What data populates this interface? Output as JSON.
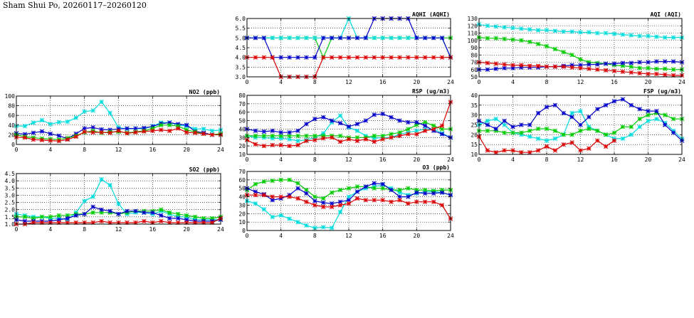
{
  "page": {
    "title": "Sham Shui Po, 20260117–20260120"
  },
  "colors": {
    "blue": "#0000cc",
    "green": "#00cc00",
    "red": "#dd0000",
    "cyan": "#00dddd",
    "grid": "#000000"
  },
  "chart_data": [
    {
      "id": "no2",
      "type": "line",
      "title": "NO2 (ppb)",
      "xlim": [
        0,
        24
      ],
      "ylim": [
        0,
        100
      ],
      "xticks": [
        "0",
        "4",
        "8",
        "12",
        "16",
        "20",
        "24"
      ],
      "yticks": [
        "0",
        "20",
        "40",
        "60",
        "80",
        "100"
      ],
      "x": [
        0,
        1,
        2,
        3,
        4,
        5,
        6,
        7,
        8,
        9,
        10,
        11,
        12,
        13,
        14,
        15,
        16,
        17,
        18,
        19,
        20,
        21,
        22,
        23,
        24
      ],
      "series": [
        {
          "name": "cyan",
          "values": [
            38,
            38,
            45,
            50,
            42,
            46,
            47,
            55,
            68,
            70,
            88,
            65,
            35,
            32,
            33,
            32,
            38,
            45,
            45,
            40,
            38,
            32,
            32,
            28,
            30
          ]
        },
        {
          "name": "blue",
          "values": [
            23,
            21,
            24,
            27,
            22,
            18,
            12,
            22,
            33,
            35,
            31,
            30,
            32,
            33,
            33,
            34,
            37,
            43,
            45,
            42,
            40,
            27,
            24,
            20,
            20
          ]
        },
        {
          "name": "green",
          "values": [
            20,
            16,
            14,
            12,
            11,
            10,
            13,
            18,
            25,
            28,
            24,
            26,
            26,
            24,
            26,
            28,
            33,
            40,
            40,
            38,
            30,
            26,
            22,
            20,
            22
          ]
        },
        {
          "name": "red",
          "values": [
            15,
            14,
            10,
            9,
            8,
            7,
            10,
            16,
            26,
            25,
            25,
            24,
            28,
            23,
            25,
            27,
            28,
            30,
            28,
            33,
            25,
            24,
            22,
            20,
            20
          ]
        }
      ]
    },
    {
      "id": "so2",
      "type": "line",
      "title": "SO2 (ppb)",
      "xlim": [
        0,
        24
      ],
      "ylim": [
        1.0,
        4.5
      ],
      "xticks": [
        "0",
        "4",
        "8",
        "12",
        "16",
        "20",
        "24"
      ],
      "yticks": [
        "1.0",
        "1.5",
        "2.0",
        "2.5",
        "3.0",
        "3.5",
        "4.0",
        "4.5"
      ],
      "x": [
        0,
        1,
        2,
        3,
        4,
        5,
        6,
        7,
        8,
        9,
        10,
        11,
        12,
        13,
        14,
        15,
        16,
        17,
        18,
        19,
        20,
        21,
        22,
        23,
        24
      ],
      "series": [
        {
          "name": "cyan",
          "values": [
            1.7,
            1.6,
            1.5,
            1.5,
            1.4,
            1.4,
            1.3,
            1.8,
            2.6,
            2.9,
            4.1,
            3.7,
            2.4,
            1.7,
            1.8,
            1.8,
            1.7,
            1.9,
            1.7,
            1.5,
            1.5,
            1.3,
            1.3,
            1.3,
            1.3
          ]
        },
        {
          "name": "green",
          "values": [
            1.5,
            1.5,
            1.4,
            1.5,
            1.5,
            1.6,
            1.6,
            1.7,
            1.7,
            1.8,
            1.8,
            1.8,
            1.7,
            1.8,
            1.9,
            1.9,
            1.9,
            2.0,
            1.8,
            1.7,
            1.6,
            1.5,
            1.4,
            1.4,
            1.5
          ]
        },
        {
          "name": "blue",
          "values": [
            1.3,
            1.2,
            1.2,
            1.2,
            1.2,
            1.3,
            1.4,
            1.6,
            1.7,
            2.2,
            2.0,
            1.9,
            1.7,
            1.9,
            1.9,
            1.8,
            1.8,
            1.6,
            1.4,
            1.4,
            1.3,
            1.2,
            1.2,
            1.2,
            1.3
          ]
        },
        {
          "name": "red",
          "values": [
            1.0,
            1.0,
            1.1,
            1.1,
            1.1,
            1.1,
            1.1,
            1.1,
            1.1,
            1.1,
            1.2,
            1.1,
            1.1,
            1.1,
            1.1,
            1.2,
            1.1,
            1.2,
            1.1,
            1.1,
            1.1,
            1.1,
            1.1,
            1.1,
            1.4
          ]
        }
      ]
    },
    {
      "id": "aqhi",
      "type": "line",
      "title": "AQHI (AQHI)",
      "xlim": [
        0,
        24
      ],
      "ylim": [
        3.0,
        6.0
      ],
      "xticks": [
        "0",
        "4",
        "8",
        "12",
        "16",
        "20",
        "24"
      ],
      "yticks": [
        "3.0",
        "3.5",
        "4.0",
        "4.5",
        "5.0",
        "5.5",
        "6.0"
      ],
      "x": [
        0,
        1,
        2,
        3,
        4,
        5,
        6,
        7,
        8,
        9,
        10,
        11,
        12,
        13,
        14,
        15,
        16,
        17,
        18,
        19,
        20,
        21,
        22,
        23,
        24
      ],
      "series": [
        {
          "name": "green",
          "values": [
            5,
            5,
            5,
            5,
            5,
            5,
            5,
            5,
            5,
            4,
            5,
            5,
            5,
            5,
            5,
            5,
            5,
            5,
            5,
            5,
            5,
            5,
            5,
            5,
            5
          ]
        },
        {
          "name": "cyan",
          "values": [
            5,
            5,
            5,
            5,
            5,
            5,
            5,
            5,
            5,
            5,
            5,
            5,
            6,
            5,
            5,
            5,
            5,
            5,
            5,
            5,
            5,
            5,
            5,
            5,
            4
          ]
        },
        {
          "name": "blue",
          "values": [
            5,
            5,
            5,
            4,
            4,
            4,
            4,
            4,
            4,
            5,
            5,
            5,
            5,
            5,
            5,
            6,
            6,
            6,
            6,
            6,
            5,
            5,
            5,
            5,
            4
          ]
        },
        {
          "name": "red",
          "values": [
            4,
            4,
            4,
            4,
            3,
            3,
            3,
            3,
            3,
            4,
            4,
            4,
            4,
            4,
            4,
            4,
            4,
            4,
            4,
            4,
            4,
            4,
            4,
            4,
            4
          ]
        }
      ]
    },
    {
      "id": "rsp",
      "type": "line",
      "title": "RSP (ug/m3)",
      "xlim": [
        0,
        24
      ],
      "ylim": [
        10,
        80
      ],
      "xticks": [
        "0",
        "4",
        "8",
        "12",
        "16",
        "20",
        "24"
      ],
      "yticks": [
        "10",
        "20",
        "30",
        "40",
        "50",
        "60",
        "70",
        "80"
      ],
      "x": [
        0,
        1,
        2,
        3,
        4,
        5,
        6,
        7,
        8,
        9,
        10,
        11,
        12,
        13,
        14,
        15,
        16,
        17,
        18,
        19,
        20,
        21,
        22,
        23,
        24
      ],
      "series": [
        {
          "name": "cyan",
          "values": [
            32,
            30,
            30,
            29,
            29,
            28,
            26,
            27,
            30,
            35,
            48,
            56,
            42,
            38,
            32,
            29,
            30,
            30,
            34,
            36,
            38,
            40,
            40,
            35,
            30
          ]
        },
        {
          "name": "green",
          "values": [
            32,
            32,
            32,
            32,
            32,
            32,
            32,
            32,
            32,
            32,
            32,
            32,
            30,
            30,
            30,
            32,
            32,
            34,
            36,
            40,
            45,
            48,
            44,
            40,
            40
          ]
        },
        {
          "name": "blue",
          "values": [
            40,
            38,
            37,
            38,
            36,
            36,
            38,
            46,
            52,
            54,
            50,
            47,
            43,
            46,
            50,
            57,
            58,
            54,
            50,
            48,
            48,
            44,
            38,
            34,
            30
          ]
        },
        {
          "name": "red",
          "values": [
            27,
            22,
            20,
            21,
            21,
            20,
            21,
            26,
            27,
            29,
            30,
            25,
            28,
            26,
            28,
            25,
            28,
            30,
            32,
            34,
            34,
            38,
            40,
            44,
            72
          ]
        }
      ]
    },
    {
      "id": "o3",
      "type": "line",
      "title": "O3 (ppb)",
      "xlim": [
        0,
        24
      ],
      "ylim": [
        0,
        70
      ],
      "xticks": [
        "0",
        "4",
        "8",
        "12",
        "16",
        "20",
        "24"
      ],
      "yticks": [
        "0",
        "10",
        "20",
        "30",
        "40",
        "50",
        "60",
        "70"
      ],
      "x": [
        0,
        1,
        2,
        3,
        4,
        5,
        6,
        7,
        8,
        9,
        10,
        11,
        12,
        13,
        14,
        15,
        16,
        17,
        18,
        19,
        20,
        21,
        22,
        23,
        24
      ],
      "series": [
        {
          "name": "cyan",
          "values": [
            35,
            32,
            25,
            16,
            18,
            14,
            10,
            6,
            3,
            4,
            3,
            22,
            40,
            46,
            50,
            52,
            54,
            50,
            45,
            42,
            44,
            46,
            46,
            45,
            42
          ]
        },
        {
          "name": "green",
          "values": [
            48,
            55,
            58,
            59,
            60,
            60,
            56,
            48,
            40,
            38,
            45,
            48,
            50,
            52,
            52,
            50,
            50,
            48,
            48,
            50,
            48,
            48,
            47,
            48,
            48
          ]
        },
        {
          "name": "blue",
          "values": [
            50,
            46,
            43,
            36,
            38,
            42,
            50,
            44,
            35,
            33,
            32,
            34,
            36,
            46,
            52,
            56,
            55,
            48,
            40,
            40,
            45,
            44,
            44,
            45,
            42
          ]
        },
        {
          "name": "red",
          "values": [
            42,
            42,
            42,
            40,
            40,
            40,
            38,
            34,
            30,
            28,
            28,
            30,
            32,
            38,
            36,
            36,
            36,
            34,
            36,
            32,
            34,
            34,
            34,
            30,
            14
          ]
        }
      ]
    },
    {
      "id": "aqi",
      "type": "line",
      "title": "AQI (AQI)",
      "xlim": [
        0,
        24
      ],
      "ylim": [
        50,
        130
      ],
      "xticks": [
        "0",
        "4",
        "8",
        "12",
        "16",
        "20",
        "24"
      ],
      "yticks": [
        "50",
        "60",
        "70",
        "80",
        "90",
        "100",
        "110",
        "120",
        "130"
      ],
      "x": [
        0,
        1,
        2,
        3,
        4,
        5,
        6,
        7,
        8,
        9,
        10,
        11,
        12,
        13,
        14,
        15,
        16,
        17,
        18,
        19,
        20,
        21,
        22,
        23,
        24
      ],
      "series": [
        {
          "name": "cyan",
          "values": [
            122,
            120,
            119,
            118,
            117,
            116,
            115,
            114,
            114,
            113,
            112,
            112,
            111,
            111,
            110,
            110,
            109,
            108,
            107,
            106,
            106,
            105,
            104,
            104,
            104
          ]
        },
        {
          "name": "green",
          "values": [
            104,
            103,
            103,
            102,
            101,
            100,
            98,
            95,
            92,
            88,
            84,
            80,
            74,
            70,
            69,
            68,
            66,
            65,
            64,
            62,
            62,
            61,
            61,
            60,
            60
          ]
        },
        {
          "name": "blue",
          "values": [
            60,
            60,
            61,
            62,
            62,
            63,
            63,
            63,
            64,
            64,
            65,
            66,
            66,
            67,
            67,
            68,
            68,
            69,
            69,
            70,
            70,
            71,
            71,
            71,
            70
          ]
        },
        {
          "name": "red",
          "values": [
            70,
            69,
            68,
            67,
            66,
            66,
            65,
            65,
            64,
            64,
            64,
            63,
            62,
            61,
            60,
            59,
            58,
            57,
            56,
            55,
            54,
            54,
            53,
            52,
            52
          ]
        }
      ]
    },
    {
      "id": "fsp",
      "type": "line",
      "title": "FSP (ug/m3)",
      "xlim": [
        0,
        24
      ],
      "ylim": [
        10,
        40
      ],
      "xticks": [
        "0",
        "4",
        "8",
        "12",
        "16",
        "20",
        "24"
      ],
      "yticks": [
        "10",
        "15",
        "20",
        "25",
        "30",
        "35",
        "40"
      ],
      "x": [
        0,
        1,
        2,
        3,
        4,
        5,
        6,
        7,
        8,
        9,
        10,
        11,
        12,
        13,
        14,
        15,
        16,
        17,
        18,
        19,
        20,
        21,
        22,
        23,
        24
      ],
      "series": [
        {
          "name": "cyan",
          "values": [
            25,
            27,
            28,
            25,
            21,
            20,
            19,
            18,
            17,
            18,
            20,
            31,
            32,
            24,
            22,
            20,
            18,
            18,
            20,
            24,
            27,
            28,
            26,
            22,
            18
          ]
        },
        {
          "name": "green",
          "values": [
            22,
            22,
            22,
            21,
            21,
            21,
            22,
            23,
            23,
            22,
            20,
            20,
            22,
            23,
            22,
            20,
            21,
            24,
            24,
            28,
            30,
            31,
            30,
            28,
            28
          ]
        },
        {
          "name": "blue",
          "values": [
            27,
            25,
            23,
            27,
            24,
            25,
            25,
            31,
            34,
            35,
            31,
            29,
            25,
            29,
            33,
            35,
            37,
            38,
            35,
            33,
            32,
            32,
            25,
            21,
            17
          ]
        },
        {
          "name": "red",
          "values": [
            19,
            12,
            11,
            12,
            12,
            11,
            11,
            12,
            14,
            12,
            15,
            16,
            12,
            13,
            17,
            14,
            17,
            null,
            null,
            null,
            null,
            null,
            null,
            null,
            null
          ]
        }
      ]
    }
  ]
}
